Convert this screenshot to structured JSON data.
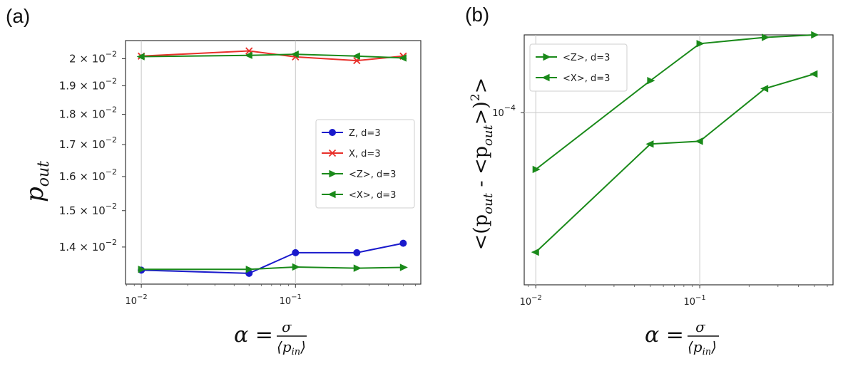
{
  "chart_data": [
    {
      "type": "line",
      "panel_label": "(a)",
      "xscale": "log",
      "yscale": "log",
      "xlim": [
        0.0079,
        0.65
      ],
      "ylim": [
        0.01305,
        0.0207
      ],
      "grid": "vertical",
      "xticks": [
        {
          "value": 0.01,
          "base": "10",
          "exp": "−2"
        },
        {
          "value": 0.1,
          "base": "10",
          "exp": "−1"
        }
      ],
      "yticks": [
        {
          "value": 0.02,
          "mant": "2 × 10",
          "exp": "−2"
        },
        {
          "value": 0.019,
          "mant": "1.9 × 10",
          "exp": "−2"
        },
        {
          "value": 0.018,
          "mant": "1.8 × 10",
          "exp": "−2"
        },
        {
          "value": 0.017,
          "mant": "1.7 × 10",
          "exp": "−2"
        },
        {
          "value": 0.016,
          "mant": "1.6 × 10",
          "exp": "−2"
        },
        {
          "value": 0.015,
          "mant": "1.5 × 10",
          "exp": "−2"
        },
        {
          "value": 0.014,
          "mant": "1.4 × 10",
          "exp": "−2"
        }
      ],
      "ylabel": {
        "main": "p",
        "sub": "out"
      },
      "xlabel": {
        "lhs": "α =",
        "num": "σ",
        "den": "⟨p",
        "den_sub": "in",
        "den_close": "⟩"
      },
      "legend_position": "center-right",
      "x": [
        0.01,
        0.05,
        0.1,
        0.25,
        0.5
      ],
      "series": [
        {
          "name": "Z, d=3",
          "color": "#1a1acc",
          "marker": "circle",
          "values": [
            0.0134,
            0.01332,
            0.01385,
            0.01385,
            0.0141
          ]
        },
        {
          "name": "X, d=3",
          "color": "#e8302a",
          "marker": "x",
          "values": [
            0.0201,
            0.0203,
            0.02007,
            0.01993,
            0.0201
          ]
        },
        {
          "name": "<Z>, d=3",
          "color": "#1a8a1a",
          "marker": "tri-right",
          "values": [
            0.01342,
            0.01342,
            0.01348,
            0.01345,
            0.01347
          ]
        },
        {
          "name": "<X>, d=3",
          "color": "#1a8a1a",
          "marker": "tri-left",
          "values": [
            0.02008,
            0.02013,
            0.02017,
            0.0201,
            0.02003
          ]
        }
      ]
    },
    {
      "type": "line",
      "panel_label": "(b)",
      "xscale": "log",
      "yscale": "log",
      "xlim": [
        0.0085,
        0.65
      ],
      "ylim": [
        1.915e-05,
        0.000211
      ],
      "grid": "both",
      "xticks": [
        {
          "value": 0.01,
          "base": "10",
          "exp": "−2"
        },
        {
          "value": 0.1,
          "base": "10",
          "exp": "−1"
        }
      ],
      "yticks": [
        {
          "value": 0.0001,
          "mant": "10",
          "exp": "−4"
        }
      ],
      "ylabel": {
        "text": "<(p",
        "sub1": "out",
        "mid": " - <p",
        "sub2": "out",
        "close": ">)",
        "sup": "2",
        "end": ">"
      },
      "xlabel": {
        "lhs": "α =",
        "num": "σ",
        "den": "⟨p",
        "den_sub": "in",
        "den_close": "⟩"
      },
      "legend_position": "upper-left",
      "x": [
        0.01,
        0.05,
        0.1,
        0.25,
        0.5
      ],
      "series": [
        {
          "name": "<Z>, d=3",
          "color": "#1a8a1a",
          "marker": "tri-right",
          "values": [
            5.8e-05,
            0.000136,
            0.000194,
            0.000206,
            0.000211
          ]
        },
        {
          "name": "<X>, d=3",
          "color": "#1a8a1a",
          "marker": "tri-left",
          "values": [
            2.62e-05,
            7.4e-05,
            7.6e-05,
            0.000126,
            0.000145
          ]
        }
      ]
    }
  ]
}
